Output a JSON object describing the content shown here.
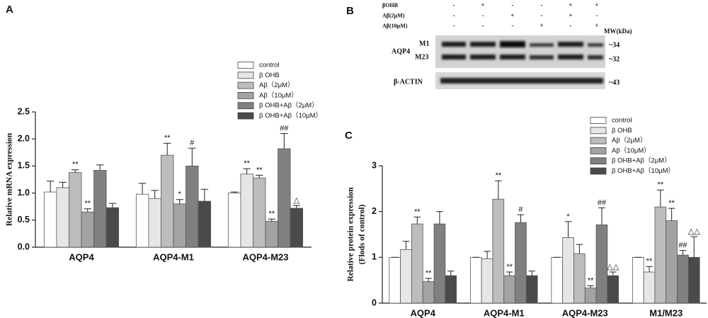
{
  "chart_data": [
    {
      "type": "bar",
      "panel": "A",
      "ytitle": [
        "Relative mRNA expression"
      ],
      "categories": [
        "AQP4",
        "AQP4-M1",
        "AQP4-M23"
      ],
      "ylim": [
        0,
        2.5
      ],
      "yticks": [
        {
          "value": 0,
          "label": "0.0"
        },
        0.5,
        {
          "value": 1,
          "label": "1.0"
        },
        1.5,
        {
          "value": 2,
          "label": "2.0"
        },
        2.5
      ],
      "series": [
        {
          "name": "control",
          "color": "#ffffff",
          "values": [
            1.02,
            0.98,
            1.0
          ],
          "errors": [
            0.2,
            0.2,
            0.02
          ],
          "annotations": [
            null,
            null,
            null
          ]
        },
        {
          "name": "β OHB",
          "color": "#e6e6e6",
          "values": [
            1.1,
            0.9,
            1.35
          ],
          "errors": [
            0.1,
            0.15,
            0.1
          ],
          "annotations": [
            null,
            null,
            "**"
          ]
        },
        {
          "name": "Aβ（2μM）",
          "color": "#bdbdbd",
          "values": [
            1.38,
            1.7,
            1.28
          ],
          "errors": [
            0.05,
            0.22,
            0.05
          ],
          "annotations": [
            "**",
            "**",
            "**"
          ]
        },
        {
          "name": "Aβ（10μM）",
          "color": "#a3a3a3",
          "values": [
            0.65,
            0.8,
            0.48
          ],
          "errors": [
            0.06,
            0.08,
            0.04
          ],
          "annotations": [
            "**",
            "*",
            "**"
          ]
        },
        {
          "name": "β OHB+Aβ（2μM）",
          "color": "#808080",
          "values": [
            1.42,
            1.5,
            1.82
          ],
          "errors": [
            0.1,
            0.33,
            0.28
          ],
          "annotations": [
            null,
            "#",
            "##"
          ]
        },
        {
          "name": "β OHB+Aβ（10μM）",
          "color": "#4a4a4a",
          "values": [
            0.73,
            0.85,
            0.72
          ],
          "errors": [
            0.08,
            0.22,
            0.05
          ],
          "annotations": [
            null,
            null,
            "△"
          ]
        }
      ]
    },
    {
      "type": "bar",
      "panel": "C",
      "ytitle": [
        "Relative protein expression",
        "(Flods of control)"
      ],
      "categories": [
        "AQP4",
        "AQP4-M1",
        "AQP4-M23",
        "M1/M23"
      ],
      "ylim": [
        0,
        3
      ],
      "yticks": [
        0,
        1,
        2,
        3
      ],
      "series": [
        {
          "name": "control",
          "color": "#ffffff",
          "values": [
            1.0,
            1.0,
            1.0,
            1.0
          ],
          "errors": [
            0,
            0,
            0,
            0
          ],
          "annotations": [
            null,
            null,
            null,
            null
          ]
        },
        {
          "name": "β OHB",
          "color": "#e6e6e6",
          "values": [
            1.17,
            0.97,
            1.43,
            0.68
          ],
          "errors": [
            0.18,
            0.16,
            0.35,
            0.12
          ],
          "annotations": [
            null,
            null,
            "*",
            "**"
          ]
        },
        {
          "name": "Aβ（2μM）",
          "color": "#bdbdbd",
          "values": [
            1.73,
            2.27,
            1.08,
            2.1
          ],
          "errors": [
            0.15,
            0.4,
            0.2,
            0.37
          ],
          "annotations": [
            "**",
            "**",
            null,
            "**"
          ]
        },
        {
          "name": "Aβ（10μM）",
          "color": "#a3a3a3",
          "values": [
            0.47,
            0.6,
            0.33,
            1.8
          ],
          "errors": [
            0.07,
            0.08,
            0.05,
            0.27
          ],
          "annotations": [
            "**",
            "**",
            "**",
            "**"
          ]
        },
        {
          "name": "β OHB+Aβ（2μM）",
          "color": "#808080",
          "values": [
            1.73,
            1.76,
            1.71,
            1.05
          ],
          "errors": [
            0.27,
            0.17,
            0.37,
            0.1
          ],
          "annotations": [
            null,
            "#",
            "##",
            "##"
          ]
        },
        {
          "name": "β OHB+Aβ（10μM）",
          "color": "#4a4a4a",
          "values": [
            0.6,
            0.6,
            0.6,
            1.0
          ],
          "errors": [
            0.1,
            0.1,
            0.08,
            0.45
          ],
          "annotations": [
            null,
            null,
            "△△",
            "△△"
          ]
        }
      ]
    }
  ],
  "blot": {
    "panel": "B",
    "rows": [
      {
        "label": "βOHB",
        "signs": [
          "-",
          "+",
          "-",
          "-",
          "+",
          "+"
        ]
      },
      {
        "label": "Aβ(2μM)",
        "signs": [
          "-",
          "-",
          "+",
          "-",
          "+",
          "-"
        ]
      },
      {
        "label": "Aβ(10μM)",
        "signs": [
          "-",
          "-",
          "-",
          "+",
          "-",
          "+"
        ]
      }
    ],
    "mw": "MW(kDa)",
    "protein": "AQP4",
    "m1": "M1",
    "m23": "M23",
    "m1_mw": "~34",
    "m23_mw": "~32",
    "actin": "β-ACTIN",
    "actin_mw": "~43"
  }
}
